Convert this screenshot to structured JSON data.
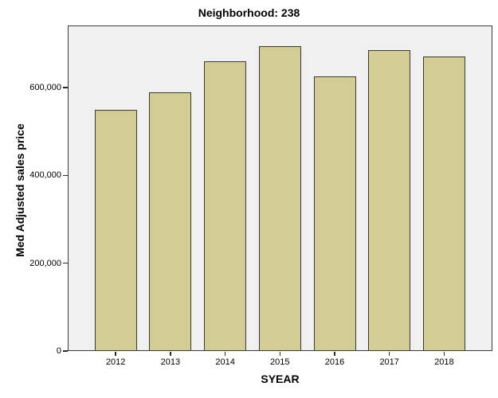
{
  "chart_data": {
    "type": "bar",
    "title": "Neighborhood: 238",
    "xlabel": "SYEAR",
    "ylabel": "Med Adjusted sales price",
    "categories": [
      "2012",
      "2013",
      "2014",
      "2015",
      "2016",
      "2017",
      "2018"
    ],
    "values": [
      550000,
      590000,
      660000,
      695000,
      625000,
      685000,
      670000
    ],
    "ylim": [
      0,
      742000
    ],
    "yticks": [
      0,
      200000,
      400000,
      600000
    ],
    "ytick_labels": [
      "0",
      "200,000",
      "400,000",
      "600,000"
    ],
    "grid": false,
    "legend_position": "none"
  },
  "colors": {
    "bar_fill": "#d1cd95",
    "bar_border": "#3a3a30",
    "plot_background": "#f0f0f0",
    "plot_border": "#3d3d3d",
    "canvas_background": "#ffffff",
    "text": "#000000"
  }
}
